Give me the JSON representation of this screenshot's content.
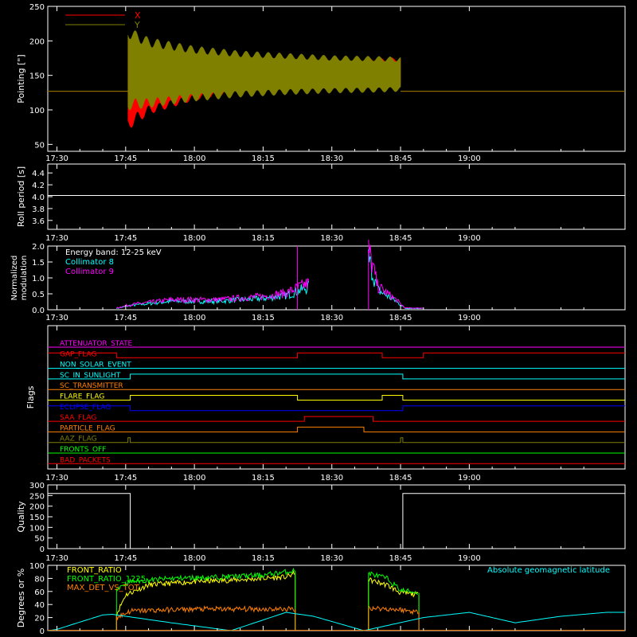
{
  "time_ticks": [
    "17:30",
    "17:45",
    "18:00",
    "18:15",
    "18:30",
    "18:45",
    "19:00"
  ],
  "chart_data": [
    {
      "type": "line",
      "name": "pointing",
      "ylabel": "Pointing [\"]",
      "ylim": [
        40,
        250
      ],
      "yticks": [
        "50",
        "100",
        "150",
        "200",
        "250"
      ],
      "xlim_minutes": [
        -2,
        124
      ],
      "legend": "top-left",
      "series": [
        {
          "name": "X",
          "color": "#ff0000",
          "baseline": 127,
          "envelope": [
            [
              15.5,
              80,
              200
            ],
            [
              20,
              100,
              182
            ],
            [
              30,
              118,
              172
            ],
            [
              40,
              128,
              168
            ],
            [
              50,
              133,
              168
            ],
            [
              60,
              135,
              170
            ],
            [
              70,
              137,
              172
            ],
            [
              75,
              137,
              173
            ]
          ]
        },
        {
          "name": "Y",
          "color": "#808000",
          "baseline": 127,
          "envelope": [
            [
              15.5,
              108,
              212
            ],
            [
              20,
              110,
              198
            ],
            [
              30,
              118,
              187
            ],
            [
              40,
              123,
              181
            ],
            [
              50,
              126,
              178
            ],
            [
              60,
              128,
              175
            ],
            [
              70,
              129,
              174
            ],
            [
              75,
              130,
              173
            ]
          ]
        }
      ]
    },
    {
      "type": "line",
      "name": "roll-period",
      "ylabel": "Roll period [s]",
      "ylim": [
        3.45,
        4.55
      ],
      "yticks": [
        "3.6",
        "3.8",
        "4.0",
        "4.2",
        "4.4"
      ],
      "series": [
        {
          "name": "",
          "color": "#ffffff",
          "value": 4.02
        }
      ]
    },
    {
      "type": "line",
      "name": "modulation",
      "ylabel": "Normalized modulation",
      "ylim": [
        0,
        2.0
      ],
      "yticks": [
        "0.0",
        "0.5",
        "1.0",
        "1.5",
        "2.0"
      ],
      "legend": "top-left",
      "annotation": "Energy band: 12-25 keV",
      "series": [
        {
          "name": "Collimator 8",
          "color": "#00ffff"
        },
        {
          "name": "Collimator 9",
          "color": "#ff00ff"
        }
      ],
      "segments": [
        {
          "x": [
            13,
            16,
            25,
            35,
            45,
            50,
            55
          ],
          "y": [
            0.05,
            0.15,
            0.3,
            0.3,
            0.4,
            0.5,
            0.8
          ]
        },
        {
          "x": [
            68,
            70,
            72,
            74,
            76,
            80
          ],
          "y": [
            1.8,
            0.7,
            0.5,
            0.3,
            0.05,
            0.05
          ]
        }
      ]
    },
    {
      "type": "step",
      "name": "flags",
      "ylabel": "Flags",
      "flags": [
        {
          "label": "ATTENUATOR_STATE",
          "color": "#ff00ff",
          "segments": [
            [
              -2,
              124,
              0
            ]
          ]
        },
        {
          "label": "GAP_FLAG",
          "color": "#ff0000",
          "segments": [
            [
              -2,
              13,
              1
            ],
            [
              13,
              52.5,
              0
            ],
            [
              52.5,
              71,
              1
            ],
            [
              71,
              80,
              0
            ],
            [
              80,
              124,
              1
            ]
          ]
        },
        {
          "label": "NON_SOLAR_EVENT",
          "color": "#00ffff",
          "segments": [
            [
              -2,
              124,
              0
            ]
          ]
        },
        {
          "label": "SC_IN_SUNLIGHT",
          "color": "#00ffff",
          "segments": [
            [
              -2,
              16,
              0
            ],
            [
              16,
              75.5,
              1
            ],
            [
              75.5,
              124,
              0
            ]
          ]
        },
        {
          "label": "SC_TRANSMITTER",
          "color": "#ff8000",
          "segments": [
            [
              -2,
              124,
              0
            ]
          ]
        },
        {
          "label": "FLARE_FLAG",
          "color": "#ffff00",
          "segments": [
            [
              -2,
              16,
              0
            ],
            [
              16,
              52.5,
              1
            ],
            [
              52.5,
              71,
              0
            ],
            [
              71,
              75.5,
              1
            ],
            [
              75.5,
              124,
              0
            ]
          ]
        },
        {
          "label": "ECLIPSE_FLAG",
          "color": "#0000ff",
          "segments": [
            [
              -2,
              16,
              1
            ],
            [
              16,
              75.5,
              0
            ],
            [
              75.5,
              124,
              1
            ]
          ]
        },
        {
          "label": "SAA_FLAG",
          "color": "#ff0000",
          "segments": [
            [
              -2,
              54,
              0
            ],
            [
              54,
              69,
              1
            ],
            [
              69,
              124,
              0
            ]
          ]
        },
        {
          "label": "PARTICLE_FLAG",
          "color": "#ff8000",
          "segments": [
            [
              -2,
              52.5,
              0
            ],
            [
              52.5,
              67,
              1
            ],
            [
              67,
              124,
              0
            ]
          ]
        },
        {
          "label": "AAZ_FLAG",
          "color": "#808000",
          "segments": [
            [
              -2,
              15.5,
              0
            ],
            [
              15.5,
              16,
              1
            ],
            [
              16,
              75,
              0
            ],
            [
              75,
              75.5,
              1
            ],
            [
              75.5,
              124,
              0
            ]
          ]
        },
        {
          "label": "FRONTS_OFF",
          "color": "#00ff00",
          "segments": [
            [
              -2,
              124,
              0
            ]
          ]
        },
        {
          "label": "BAD_PACKETS",
          "color": "#ff0000",
          "segments": [
            [
              -2,
              124,
              0
            ]
          ]
        }
      ]
    },
    {
      "type": "line",
      "name": "quality",
      "ylabel": "Quality",
      "ylim": [
        0,
        300
      ],
      "yticks": [
        "0",
        "50",
        "100",
        "150",
        "200",
        "250",
        "300"
      ],
      "series": [
        {
          "name": "",
          "color": "#ffffff",
          "points": [
            [
              -2,
              260
            ],
            [
              16,
              260
            ],
            [
              16,
              0
            ],
            [
              75.5,
              0
            ],
            [
              75.5,
              260
            ],
            [
              124,
              260
            ]
          ]
        }
      ]
    },
    {
      "type": "line",
      "name": "degrees",
      "ylabel": "Degrees or %",
      "ylim": [
        0,
        100
      ],
      "yticks": [
        "0",
        "20",
        "40",
        "60",
        "80",
        "100"
      ],
      "legend": "top-left",
      "right_label": "Absolute geomagnetic latitude",
      "right_label_color": "#00ffff",
      "series": [
        {
          "name": "FRONT_RATIO",
          "color": "#ffff00",
          "segments": [
            [
              [
                13,
                25
              ],
              [
                15,
                55
              ],
              [
                20,
                70
              ],
              [
                30,
                75
              ],
              [
                40,
                78
              ],
              [
                50,
                82
              ],
              [
                52,
                88
              ]
            ],
            [
              [
                68,
                78
              ],
              [
                72,
                70
              ],
              [
                75,
                58
              ],
              [
                79,
                55
              ]
            ]
          ]
        },
        {
          "name": "FRONT_RATIO_1225",
          "color": "#00ff00",
          "segments": [
            [
              [
                13,
                65
              ],
              [
                16,
                75
              ],
              [
                25,
                80
              ],
              [
                35,
                82
              ],
              [
                45,
                85
              ],
              [
                52,
                92
              ]
            ],
            [
              [
                68,
                88
              ],
              [
                72,
                80
              ],
              [
                75,
                62
              ],
              [
                79,
                58
              ]
            ]
          ]
        },
        {
          "name": "MAX_DET_VS_TOT",
          "color": "#ff8000",
          "segments": [
            [
              [
                13,
                20
              ],
              [
                16,
                30
              ],
              [
                30,
                33
              ],
              [
                45,
                33
              ],
              [
                52,
                33
              ]
            ],
            [
              [
                68,
                35
              ],
              [
                75,
                32
              ],
              [
                79,
                28
              ]
            ]
          ]
        },
        {
          "name": "",
          "color": "#00ffff",
          "points": [
            [
              -2,
              0
            ],
            [
              0,
              2
            ],
            [
              10,
              24
            ],
            [
              12,
              25
            ],
            [
              25,
              12
            ],
            [
              38,
              0
            ],
            [
              50,
              28
            ],
            [
              56,
              22
            ],
            [
              67,
              0
            ],
            [
              80,
              20
            ],
            [
              90,
              28
            ],
            [
              100,
              12
            ],
            [
              110,
              22
            ],
            [
              120,
              28
            ]
          ]
        }
      ]
    }
  ]
}
